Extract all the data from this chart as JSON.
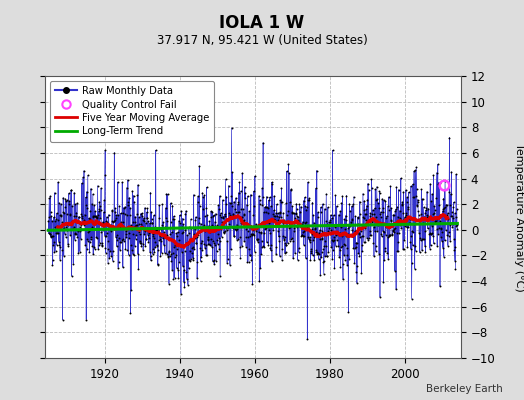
{
  "title": "IOLA 1 W",
  "subtitle": "37.917 N, 95.421 W (United States)",
  "ylabel": "Temperature Anomaly (°C)",
  "credit": "Berkeley Earth",
  "year_start": 1905,
  "year_end": 2014,
  "ylim": [
    -10,
    12
  ],
  "yticks": [
    -10,
    -8,
    -6,
    -4,
    -2,
    0,
    2,
    4,
    6,
    8,
    10,
    12
  ],
  "xticks": [
    1920,
    1940,
    1960,
    1980,
    2000
  ],
  "raw_color": "#3333cc",
  "dot_color": "#000000",
  "moving_avg_color": "#dd0000",
  "trend_color": "#00aa00",
  "qc_fail_color": "#ff44ff",
  "bg_color": "#dddddd",
  "plot_bg_color": "#ffffff",
  "grid_color": "#bbbbbb",
  "seed": 42,
  "n_months": 1296
}
